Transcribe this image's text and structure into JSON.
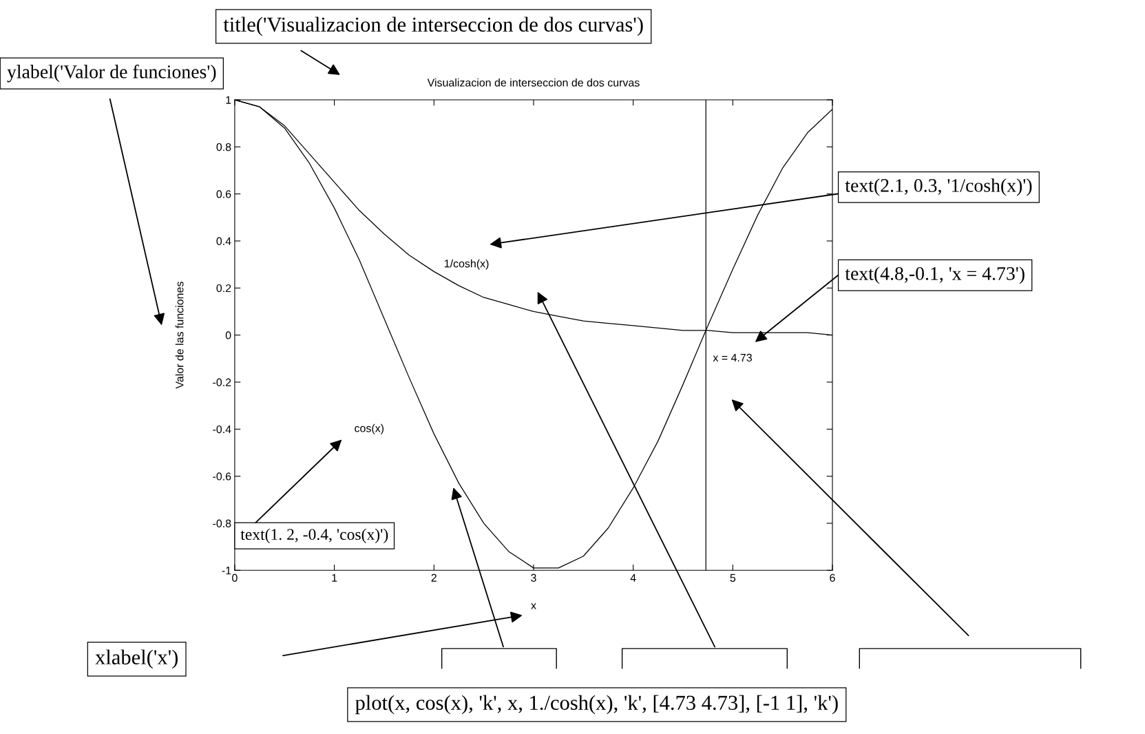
{
  "chart_data": {
    "type": "line",
    "title": "Visualizacion de interseccion de dos curvas",
    "xlabel": "x",
    "ylabel": "Valor de las funciones",
    "x": [
      0,
      0.25,
      0.5,
      0.75,
      1,
      1.25,
      1.5,
      1.75,
      2,
      2.25,
      2.5,
      2.75,
      3,
      3.25,
      3.5,
      3.75,
      4,
      4.25,
      4.5,
      4.75,
      5,
      5.25,
      5.5,
      5.75,
      6
    ],
    "series": [
      {
        "color": "#000000",
        "values": [
          1,
          0.97,
          0.88,
          0.73,
          0.54,
          0.32,
          0.07,
          -0.18,
          -0.42,
          -0.63,
          -0.8,
          -0.92,
          -0.99,
          -0.99,
          -0.94,
          -0.82,
          -0.65,
          -0.45,
          -0.21,
          0.04,
          0.28,
          0.51,
          0.71,
          0.86,
          0.96
        ]
      },
      {
        "color": "#000000",
        "values": [
          1,
          0.97,
          0.89,
          0.77,
          0.65,
          0.53,
          0.43,
          0.34,
          0.27,
          0.21,
          0.16,
          0.13,
          0.1,
          0.08,
          0.06,
          0.05,
          0.04,
          0.03,
          0.02,
          0.02,
          0.01,
          0.01,
          0.01,
          0.01,
          0
        ]
      }
    ],
    "ref_lines": [
      {
        "axis": "x",
        "value": 4.73,
        "color": "#000000"
      }
    ],
    "xlim": [
      0,
      6
    ],
    "xticks": [
      0,
      1,
      2,
      3,
      4,
      5,
      6
    ],
    "ylim": [
      -1,
      1
    ],
    "yticks": [
      -1,
      -0.8,
      -0.6,
      -0.4,
      -0.2,
      0,
      0.2,
      0.4,
      0.6,
      0.8,
      1
    ],
    "grid": false,
    "legend": false,
    "marker": "none",
    "line_style": "solid",
    "annotations": [
      "1/cosh(x)",
      "x = 4.73",
      "cos(x)",
      "title('Visualizacion de interseccion de dos curvas')",
      "ylabel('Valor de funciones')",
      "text(2.1, 0.3, '1/cosh(x)')",
      "text(4.8,-0.1, 'x = 4.73')",
      "text(1. 2, -0.4, 'cos(x)')",
      "xlabel('x')",
      "plot(x, cos(x), 'k', x, 1./cosh(x), 'k', [4.73 4.73], [-1 1], 'k')"
    ]
  }
}
